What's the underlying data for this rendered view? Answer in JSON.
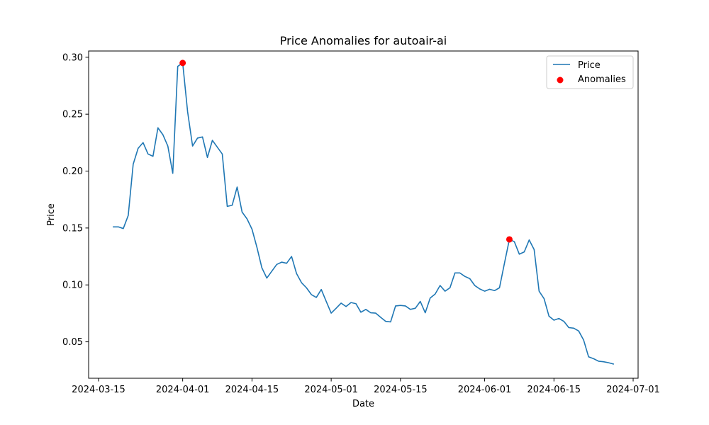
{
  "chart_data": {
    "type": "line",
    "title": "Price Anomalies for autoair-ai",
    "xlabel": "Date",
    "ylabel": "Price",
    "xlim": [
      "2024-03-13",
      "2024-07-02"
    ],
    "ylim": [
      0.018,
      0.3055
    ],
    "x_ticks": [
      "2024-03-15",
      "2024-04-01",
      "2024-04-15",
      "2024-05-01",
      "2024-05-15",
      "2024-06-01",
      "2024-06-15",
      "2024-07-01"
    ],
    "y_ticks": [
      0.05,
      0.1,
      0.15,
      0.2,
      0.25,
      0.3
    ],
    "y_tick_labels": [
      "0.05",
      "0.10",
      "0.15",
      "0.20",
      "0.25",
      "0.30"
    ],
    "legend_position": "upper right",
    "grid": false,
    "series": [
      {
        "name": "Price",
        "color": "#1f77b4",
        "x": [
          "2024-03-18",
          "2024-03-19",
          "2024-03-20",
          "2024-03-21",
          "2024-03-22",
          "2024-03-23",
          "2024-03-24",
          "2024-03-25",
          "2024-03-26",
          "2024-03-27",
          "2024-03-28",
          "2024-03-29",
          "2024-03-30",
          "2024-03-31",
          "2024-04-01",
          "2024-04-02",
          "2024-04-03",
          "2024-04-04",
          "2024-04-05",
          "2024-04-06",
          "2024-04-07",
          "2024-04-08",
          "2024-04-09",
          "2024-04-10",
          "2024-04-11",
          "2024-04-12",
          "2024-04-13",
          "2024-04-14",
          "2024-04-15",
          "2024-04-16",
          "2024-04-17",
          "2024-04-18",
          "2024-04-19",
          "2024-04-20",
          "2024-04-21",
          "2024-04-22",
          "2024-04-23",
          "2024-04-24",
          "2024-04-25",
          "2024-04-26",
          "2024-04-27",
          "2024-04-28",
          "2024-04-29",
          "2024-04-30",
          "2024-05-01",
          "2024-05-02",
          "2024-05-03",
          "2024-05-04",
          "2024-05-05",
          "2024-05-06",
          "2024-05-07",
          "2024-05-08",
          "2024-05-09",
          "2024-05-10",
          "2024-05-11",
          "2024-05-12",
          "2024-05-13",
          "2024-05-14",
          "2024-05-15",
          "2024-05-16",
          "2024-05-17",
          "2024-05-18",
          "2024-05-19",
          "2024-05-20",
          "2024-05-21",
          "2024-05-22",
          "2024-05-23",
          "2024-05-24",
          "2024-05-25",
          "2024-05-26",
          "2024-05-27",
          "2024-05-28",
          "2024-05-29",
          "2024-05-30",
          "2024-05-31",
          "2024-06-01",
          "2024-06-02",
          "2024-06-03",
          "2024-06-04",
          "2024-06-05",
          "2024-06-06",
          "2024-06-07",
          "2024-06-08",
          "2024-06-09",
          "2024-06-10",
          "2024-06-11",
          "2024-06-12",
          "2024-06-13",
          "2024-06-14",
          "2024-06-15",
          "2024-06-16",
          "2024-06-17",
          "2024-06-18",
          "2024-06-19",
          "2024-06-20",
          "2024-06-21",
          "2024-06-22",
          "2024-06-23",
          "2024-06-24",
          "2024-06-25",
          "2024-06-26",
          "2024-06-27"
        ],
        "y": [
          0.151,
          0.151,
          0.1495,
          0.161,
          0.206,
          0.22,
          0.225,
          0.215,
          0.213,
          0.238,
          0.232,
          0.222,
          0.198,
          0.292,
          0.295,
          0.252,
          0.222,
          0.229,
          0.23,
          0.212,
          0.227,
          0.221,
          0.215,
          0.169,
          0.17,
          0.186,
          0.164,
          0.158,
          0.149,
          0.133,
          0.115,
          0.106,
          0.112,
          0.118,
          0.12,
          0.119,
          0.125,
          0.11,
          0.102,
          0.0975,
          0.0915,
          0.089,
          0.096,
          0.0855,
          0.0752,
          0.0795,
          0.084,
          0.081,
          0.0845,
          0.0835,
          0.076,
          0.0785,
          0.0755,
          0.0752,
          0.0715,
          0.068,
          0.0675,
          0.0815,
          0.082,
          0.0815,
          0.0785,
          0.0795,
          0.0855,
          0.0755,
          0.0885,
          0.092,
          0.0995,
          0.0945,
          0.0975,
          0.1105,
          0.1105,
          0.1075,
          0.1055,
          0.0995,
          0.0965,
          0.0945,
          0.0962,
          0.095,
          0.0975,
          0.119,
          0.14,
          0.138,
          0.127,
          0.129,
          0.1395,
          0.131,
          0.0945,
          0.088,
          0.0725,
          0.069,
          0.0705,
          0.068,
          0.0625,
          0.062,
          0.0595,
          0.0515,
          0.0368,
          0.0352,
          0.033,
          0.0325,
          0.0317,
          0.0305
        ]
      }
    ],
    "anomalies": {
      "name": "Anomalies",
      "color": "#ff0000",
      "x": [
        "2024-04-01",
        "2024-06-06"
      ],
      "y": [
        0.295,
        0.14
      ]
    }
  }
}
